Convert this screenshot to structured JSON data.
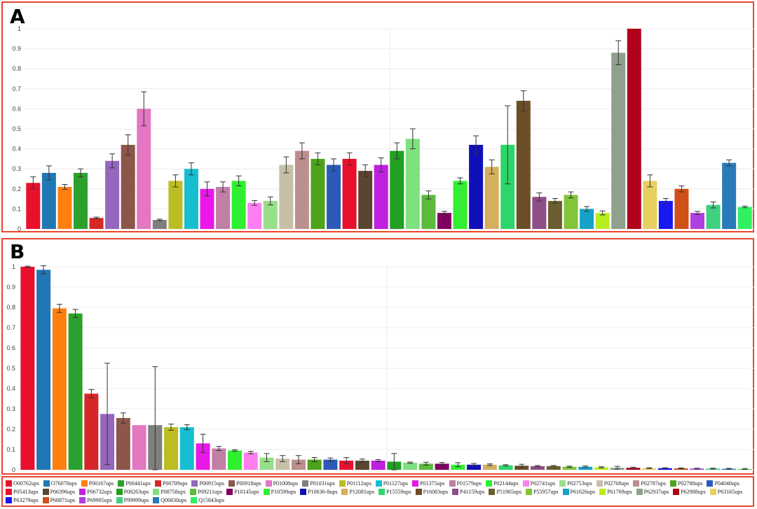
{
  "panels": {
    "a": {
      "label": "A"
    },
    "b": {
      "label": "B"
    }
  },
  "chart_data": [
    {
      "type": "bar",
      "panel": "A",
      "ylim": [
        0,
        1
      ],
      "yticks": [
        "0",
        "0.1",
        "0.2",
        "0.3",
        "0.4",
        "0.5",
        "0.6",
        "0.7",
        "0.8",
        "0.9",
        "1"
      ],
      "grid": true,
      "values": [
        0.23,
        0.28,
        0.21,
        0.28,
        0.055,
        0.34,
        0.42,
        0.6,
        0.045,
        0.24,
        0.3,
        0.2,
        0.21,
        0.24,
        0.13,
        0.14,
        0.32,
        0.39,
        0.35,
        0.32,
        0.35,
        0.29,
        0.32,
        0.39,
        0.45,
        0.17,
        0.08,
        0.24,
        0.42,
        0.31,
        0.42,
        0.64,
        0.16,
        0.14,
        0.17,
        0.1,
        0.08,
        0.88,
        1.0,
        0.24,
        0.14,
        0.2,
        0.08,
        0.12,
        0.33,
        0.11
      ],
      "errors": [
        0.03,
        0.035,
        0.012,
        0.02,
        0.004,
        0.035,
        0.05,
        0.085,
        0.004,
        0.03,
        0.03,
        0.035,
        0.025,
        0.025,
        0.012,
        0.02,
        0.04,
        0.04,
        0.03,
        0.03,
        0.03,
        0.03,
        0.035,
        0.04,
        0.05,
        0.02,
        0.008,
        0.015,
        0.045,
        0.035,
        0.195,
        0.05,
        0.02,
        0.012,
        0.015,
        0.012,
        0.01,
        0.06,
        0.0,
        0.03,
        0.012,
        0.015,
        0.008,
        0.015,
        0.015,
        0.004
      ],
      "colors": [
        "#e8112d",
        "#1f77b4",
        "#ff7f0e",
        "#2ca02c",
        "#d62728",
        "#9467bd",
        "#8c564b",
        "#e377c2",
        "#7f7f7f",
        "#bcbd22",
        "#17becf",
        "#e818e8",
        "#c17fa6",
        "#2ff02f",
        "#ff7ff0",
        "#98df8a",
        "#c8bfa8",
        "#bc8f8f",
        "#4da31a",
        "#2b5ab8",
        "#e8112d",
        "#5a4530",
        "#c020e0",
        "#21a021",
        "#7fe07f",
        "#5cba3c",
        "#800060",
        "#33ee33",
        "#1010b8",
        "#d4af5f",
        "#2ed66a",
        "#6b4e28",
        "#8e4e88",
        "#6b5e30",
        "#82c43a",
        "#17a3c8",
        "#b8ee20",
        "#8fa08c",
        "#b0001c",
        "#e8d060",
        "#1818f0",
        "#d05018",
        "#b040e0",
        "#40d080",
        "#2a7ab8",
        "#2ff060"
      ]
    },
    {
      "type": "bar",
      "panel": "B",
      "ylim": [
        0,
        1
      ],
      "yticks": [
        "0",
        "0.1",
        "0.2",
        "0.3",
        "0.4",
        "0.5",
        "0.6",
        "0.7",
        "0.8",
        "0.9",
        "1"
      ],
      "grid": true,
      "values": [
        1.0,
        0.985,
        0.795,
        0.77,
        0.375,
        0.275,
        0.255,
        0.22,
        0.22,
        0.21,
        0.21,
        0.13,
        0.105,
        0.095,
        0.085,
        0.06,
        0.055,
        0.05,
        0.05,
        0.05,
        0.045,
        0.045,
        0.045,
        0.04,
        0.035,
        0.03,
        0.03,
        0.025,
        0.025,
        0.025,
        0.022,
        0.02,
        0.018,
        0.018,
        0.015,
        0.015,
        0.012,
        0.01,
        0.01,
        0.008,
        0.008,
        0.007,
        0.006,
        0.006,
        0.005,
        0.004
      ],
      "errors": [
        0.003,
        0.02,
        0.02,
        0.02,
        0.02,
        0.25,
        0.025,
        0.0,
        0.288,
        0.015,
        0.012,
        0.045,
        0.01,
        0.004,
        0.006,
        0.02,
        0.015,
        0.02,
        0.01,
        0.008,
        0.015,
        0.008,
        0.005,
        0.04,
        0.003,
        0.007,
        0.006,
        0.01,
        0.006,
        0.004,
        0.003,
        0.007,
        0.003,
        0.003,
        0.003,
        0.004,
        0.003,
        0.007,
        0.003,
        0.002,
        0.002,
        0.002,
        0.002,
        0.002,
        0.002,
        0.002
      ],
      "colors": [
        "#e8112d",
        "#1f77b4",
        "#ff7f0e",
        "#2ca02c",
        "#d62728",
        "#9467bd",
        "#8c564b",
        "#e377c2",
        "#7f7f7f",
        "#bcbd22",
        "#17becf",
        "#e818e8",
        "#c17fa6",
        "#2ff02f",
        "#ff7ff0",
        "#98df8a",
        "#c8bfa8",
        "#bc8f8f",
        "#4da31a",
        "#2b5ab8",
        "#e8112d",
        "#5a4530",
        "#c020e0",
        "#21a021",
        "#7fe07f",
        "#5cba3c",
        "#800060",
        "#33ee33",
        "#1010b8",
        "#d4af5f",
        "#2ed66a",
        "#6b4e28",
        "#8e4e88",
        "#6b5e30",
        "#82c43a",
        "#17a3c8",
        "#b8ee20",
        "#8fa08c",
        "#b0001c",
        "#e8d060",
        "#1818f0",
        "#d05018",
        "#b040e0",
        "#40d080",
        "#2a7ab8",
        "#2ff060"
      ]
    }
  ],
  "legend": [
    {
      "label": "O00762ups",
      "color": "#e8112d"
    },
    {
      "label": "O76070ups",
      "color": "#1f77b4"
    },
    {
      "label": "P00167ups",
      "color": "#ff7f0e"
    },
    {
      "label": "P00441ups",
      "color": "#2ca02c"
    },
    {
      "label": "P00709ups",
      "color": "#d62728"
    },
    {
      "label": "P00915ups",
      "color": "#9467bd"
    },
    {
      "label": "P00918ups",
      "color": "#8c564b"
    },
    {
      "label": "P01008ups",
      "color": "#e377c2"
    },
    {
      "label": "P01031ups",
      "color": "#7f7f7f"
    },
    {
      "label": "P01112ups",
      "color": "#bcbd22"
    },
    {
      "label": "P01127ups",
      "color": "#17becf"
    },
    {
      "label": "P01375ups",
      "color": "#e818e8"
    },
    {
      "label": "P01579ups",
      "color": "#c17fa6"
    },
    {
      "label": "P02144ups",
      "color": "#2ff02f"
    },
    {
      "label": "P02741ups",
      "color": "#ff7ff0"
    },
    {
      "label": "P02753ups",
      "color": "#98df8a"
    },
    {
      "label": "P02768ups",
      "color": "#c8bfa8"
    },
    {
      "label": "P02787ups",
      "color": "#bc8f8f"
    },
    {
      "label": "P02788ups",
      "color": "#4da31a"
    },
    {
      "label": "P04040ups",
      "color": "#2b5ab8"
    },
    {
      "label": "P05413ups",
      "color": "#e8112d"
    },
    {
      "label": "P06396ups",
      "color": "#5a4530"
    },
    {
      "label": "P06732ups",
      "color": "#c020e0"
    },
    {
      "label": "P08263ups",
      "color": "#21a021"
    },
    {
      "label": "P08758ups",
      "color": "#7fe07f"
    },
    {
      "label": "P09211ups",
      "color": "#5cba3c"
    },
    {
      "label": "P10145ups",
      "color": "#800060"
    },
    {
      "label": "P10599ups",
      "color": "#33ee33"
    },
    {
      "label": "P10636-8ups",
      "color": "#1010b8"
    },
    {
      "label": "P12081ups",
      "color": "#d4af5f"
    },
    {
      "label": "P15559ups",
      "color": "#2ed66a"
    },
    {
      "label": "P16083ups",
      "color": "#6b4e28"
    },
    {
      "label": "P41159ups",
      "color": "#8e4e88"
    },
    {
      "label": "P51965ups",
      "color": "#6b5e30"
    },
    {
      "label": "P55957ups",
      "color": "#82c43a"
    },
    {
      "label": "P61626ups",
      "color": "#17a3c8"
    },
    {
      "label": "P61769ups",
      "color": "#b8ee20"
    },
    {
      "label": "P62937ups",
      "color": "#8fa08c"
    },
    {
      "label": "P62988ups",
      "color": "#b0001c"
    },
    {
      "label": "P63165ups",
      "color": "#e8d060"
    },
    {
      "label": "P63279ups",
      "color": "#1818f0"
    },
    {
      "label": "P68871ups",
      "color": "#d05018"
    },
    {
      "label": "P69905ups",
      "color": "#b040e0"
    },
    {
      "label": "P99999ups",
      "color": "#40d080"
    },
    {
      "label": "Q06830ups",
      "color": "#2a7ab8"
    },
    {
      "label": "Q15843ups",
      "color": "#2ff060"
    }
  ]
}
